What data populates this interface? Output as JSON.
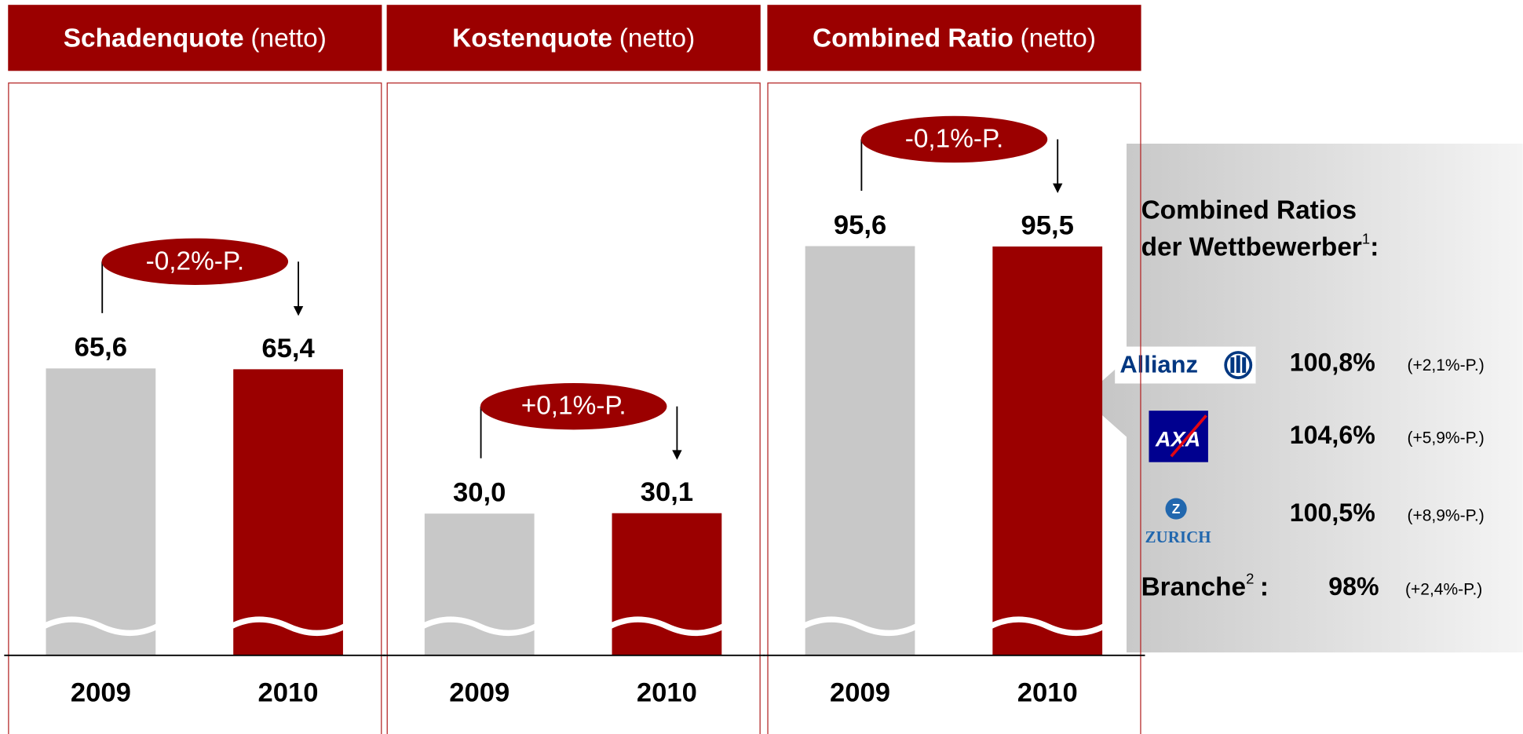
{
  "chart_data": [
    {
      "type": "bar",
      "title": "Schadenquote",
      "title_suffix": "(netto)",
      "categories": [
        "2009",
        "2010"
      ],
      "values": [
        65.6,
        65.4
      ],
      "value_labels": [
        "65,6",
        "65,4"
      ],
      "colors": [
        "#c8c8c8",
        "#9b0000"
      ],
      "annotation": "-0,2%-P."
    },
    {
      "type": "bar",
      "title": "Kostenquote",
      "title_suffix": "(netto)",
      "categories": [
        "2009",
        "2010"
      ],
      "values": [
        30.0,
        30.1
      ],
      "value_labels": [
        "30,0",
        "30,1"
      ],
      "colors": [
        "#c8c8c8",
        "#9b0000"
      ],
      "annotation": "+0,1%-P."
    },
    {
      "type": "bar",
      "title": "Combined Ratio",
      "title_suffix": "(netto)",
      "categories": [
        "2009",
        "2010"
      ],
      "values": [
        95.6,
        95.5
      ],
      "value_labels": [
        "95,6",
        "95,5"
      ],
      "colors": [
        "#c8c8c8",
        "#9b0000"
      ],
      "annotation": "-0,1%-P."
    }
  ],
  "panel": {
    "title": [
      "Combined Ratios",
      "der Wettbewerber"
    ],
    "title_note": "1",
    "title_end": ":",
    "competitors": [
      {
        "logo": "Allianz",
        "value": "100,8%",
        "change": "(+2,1%-P.)"
      },
      {
        "logo": "AXA",
        "value": "104,6%",
        "change": "(+5,9%-P.)"
      },
      {
        "logo": "ZURICH",
        "value": "100,5%",
        "change": "(+8,9%-P.)"
      }
    ],
    "market": {
      "label": "Branche",
      "note": "2",
      "separator": ":",
      "value": "98%",
      "change": "(+2,4%-P.)"
    }
  }
}
